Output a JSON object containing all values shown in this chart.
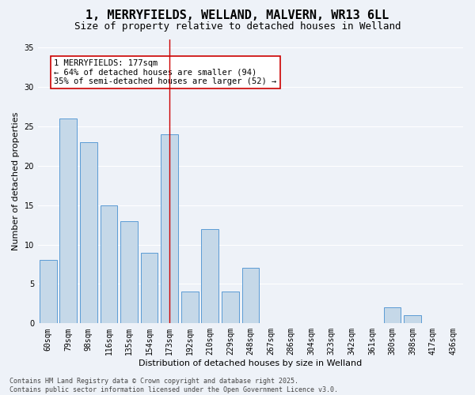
{
  "title": "1, MERRYFIELDS, WELLAND, MALVERN, WR13 6LL",
  "subtitle": "Size of property relative to detached houses in Welland",
  "xlabel": "Distribution of detached houses by size in Welland",
  "ylabel": "Number of detached properties",
  "categories": [
    "60sqm",
    "79sqm",
    "98sqm",
    "116sqm",
    "135sqm",
    "154sqm",
    "173sqm",
    "192sqm",
    "210sqm",
    "229sqm",
    "248sqm",
    "267sqm",
    "286sqm",
    "304sqm",
    "323sqm",
    "342sqm",
    "361sqm",
    "380sqm",
    "398sqm",
    "417sqm",
    "436sqm"
  ],
  "values": [
    8,
    26,
    23,
    15,
    13,
    9,
    24,
    4,
    12,
    4,
    7,
    0,
    0,
    0,
    0,
    0,
    0,
    2,
    1,
    0,
    0
  ],
  "bar_color": "#c5d8e8",
  "bar_edge_color": "#5b9bd5",
  "vline_index": 6,
  "vline_color": "#cc0000",
  "annotation_text": "1 MERRYFIELDS: 177sqm\n← 64% of detached houses are smaller (94)\n35% of semi-detached houses are larger (52) →",
  "annotation_box_color": "#ffffff",
  "annotation_border_color": "#cc0000",
  "ylim": [
    0,
    36
  ],
  "yticks": [
    0,
    5,
    10,
    15,
    20,
    25,
    30,
    35
  ],
  "footer": "Contains HM Land Registry data © Crown copyright and database right 2025.\nContains public sector information licensed under the Open Government Licence v3.0.",
  "bg_color": "#eef2f8",
  "grid_color": "#ffffff",
  "title_fontsize": 11,
  "subtitle_fontsize": 9,
  "axis_label_fontsize": 8,
  "tick_fontsize": 7,
  "annotation_fontsize": 7.5,
  "footer_fontsize": 6
}
